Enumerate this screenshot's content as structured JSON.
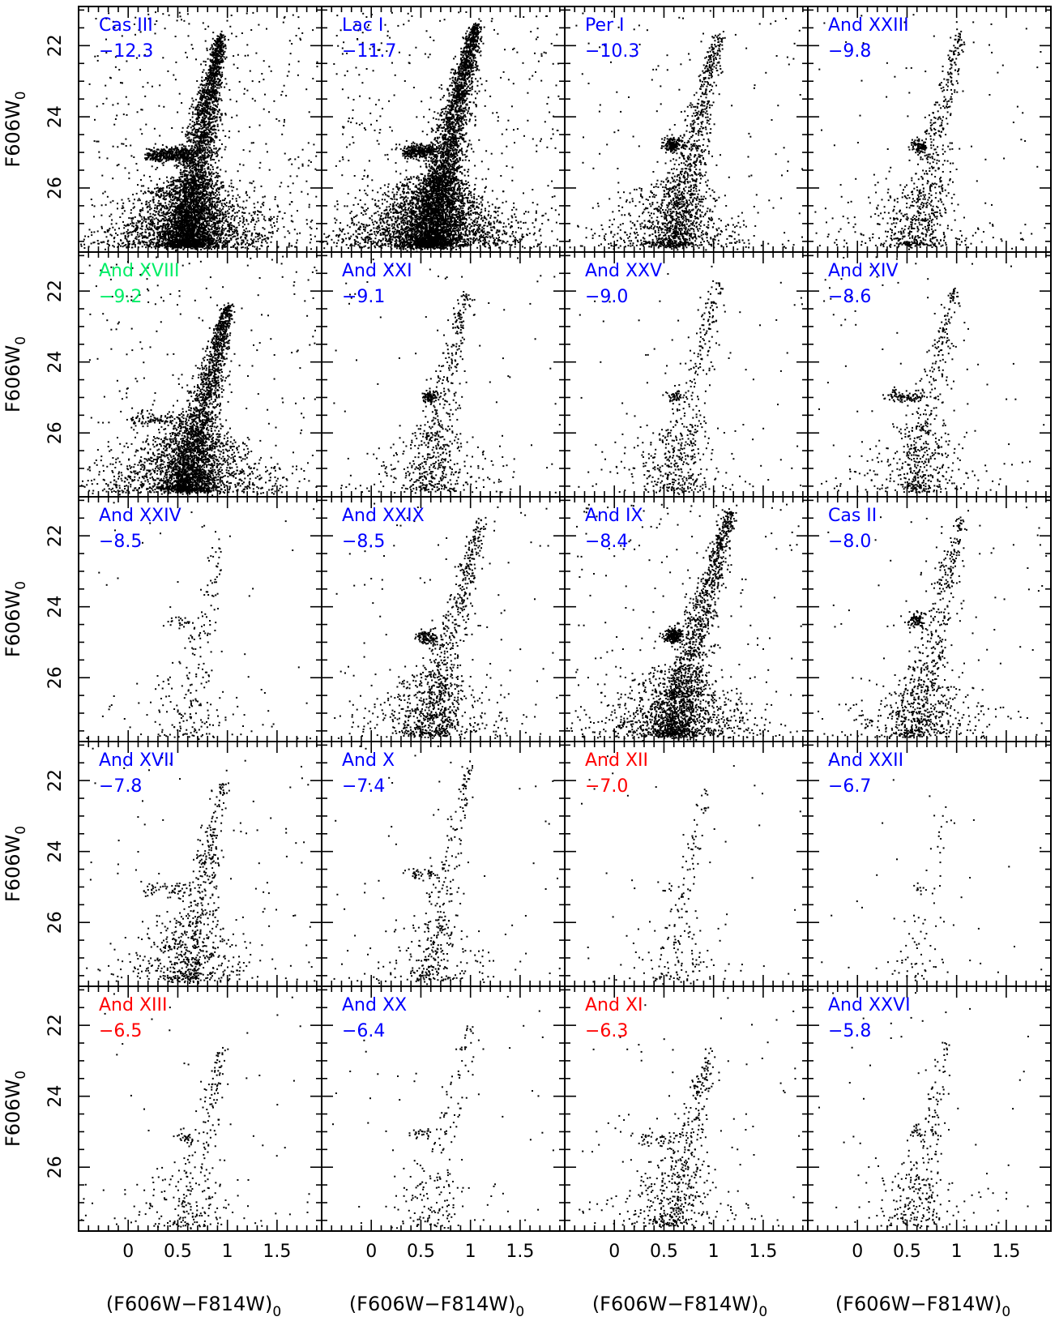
{
  "figure": {
    "ylabel": "F606W",
    "ylabel_sub": "0",
    "xlabel": "(F606W−F814W)",
    "xlabel_sub": "0"
  },
  "colors": {
    "blue": "#0000ff",
    "green": "#00ee66",
    "red": "#ff0000",
    "points": "#000000"
  },
  "chart_data": {
    "type": "scatter",
    "layout": "4 columns x 5 rows small multiples, shared axes",
    "xlim": [
      -0.5,
      1.95
    ],
    "ylim": [
      27.8,
      20.9
    ],
    "x_ticks": [
      0,
      0.5,
      1,
      1.5
    ],
    "x_tick_labels": [
      "0",
      "0.5",
      "1",
      "1.5"
    ],
    "y_ticks": [
      22,
      24,
      26
    ],
    "y_tick_labels": [
      "22",
      "24",
      "26"
    ],
    "panels": [
      {
        "name": "Cas III",
        "mag": "−12.3",
        "color": "blue",
        "n": 6000,
        "hb": [
          0.2,
          25.05,
          400
        ],
        "rgb": [
          0.88,
          21.7
        ]
      },
      {
        "name": "Lac I",
        "mag": "−11.7",
        "color": "blue",
        "n": 6500,
        "hb": [
          0.35,
          24.95,
          300
        ],
        "rgb": [
          1.0,
          21.4
        ]
      },
      {
        "name": "Per I",
        "mag": "−10.3",
        "color": "blue",
        "n": 1900,
        "hb": [
          0.55,
          24.75,
          160
        ],
        "rgb": [
          1.0,
          21.6
        ]
      },
      {
        "name": "And XXIII",
        "mag": "−9.8",
        "color": "blue",
        "n": 950,
        "hb": [
          0.6,
          24.8,
          90
        ],
        "rgb": [
          0.98,
          21.6
        ]
      },
      {
        "name": "And XVIII",
        "mag": "−9.2",
        "color": "green",
        "n": 3800,
        "hb": [
          0.05,
          25.6,
          120
        ],
        "rgb": [
          0.95,
          22.4
        ]
      },
      {
        "name": "And XXI",
        "mag": "−9.1",
        "color": "blue",
        "n": 800,
        "hb": [
          0.55,
          24.95,
          90
        ],
        "rgb": [
          0.9,
          22.0
        ]
      },
      {
        "name": "And XXV",
        "mag": "−9.0",
        "color": "blue",
        "n": 650,
        "hb": [
          0.6,
          24.95,
          50
        ],
        "rgb": [
          1.0,
          21.7
        ]
      },
      {
        "name": "And XIV",
        "mag": "−8.6",
        "color": "blue",
        "n": 750,
        "hb": [
          0.3,
          24.95,
          90
        ],
        "rgb": [
          0.92,
          21.9
        ]
      },
      {
        "name": "And XXIV",
        "mag": "−8.5",
        "color": "blue",
        "n": 300,
        "hb": [
          0.4,
          24.4,
          25
        ],
        "rgb": [
          0.9,
          21.9
        ]
      },
      {
        "name": "And XXIX",
        "mag": "−8.5",
        "color": "blue",
        "n": 1250,
        "hb": [
          0.5,
          24.85,
          110
        ],
        "rgb": [
          1.05,
          21.5
        ]
      },
      {
        "name": "And IX",
        "mag": "−8.4",
        "color": "blue",
        "n": 2700,
        "hb": [
          0.55,
          24.8,
          200
        ],
        "rgb": [
          1.1,
          21.3
        ]
      },
      {
        "name": "Cas II",
        "mag": "−8.0",
        "color": "blue",
        "n": 1000,
        "hb": [
          0.55,
          24.35,
          90
        ],
        "rgb": [
          1.0,
          21.5
        ]
      },
      {
        "name": "And XVII",
        "mag": "−7.8",
        "color": "blue",
        "n": 900,
        "hb": [
          0.1,
          25.05,
          60
        ],
        "rgb": [
          0.9,
          22.0
        ]
      },
      {
        "name": "And X",
        "mag": "−7.4",
        "color": "blue",
        "n": 480,
        "hb": [
          0.35,
          24.6,
          40
        ],
        "rgb": [
          0.95,
          21.4
        ]
      },
      {
        "name": "And XII",
        "mag": "−7.0",
        "color": "red",
        "n": 230,
        "hb": [
          0.5,
          25.1,
          10
        ],
        "rgb": [
          0.85,
          22.2
        ]
      },
      {
        "name": "And XXII",
        "mag": "−6.7",
        "color": "blue",
        "n": 110,
        "hb": [
          0.6,
          25.1,
          10
        ],
        "rgb": [
          0.85,
          22.7
        ]
      },
      {
        "name": "And XIII",
        "mag": "−6.5",
        "color": "red",
        "n": 360,
        "hb": [
          0.5,
          25.15,
          25
        ],
        "rgb": [
          0.9,
          22.6
        ]
      },
      {
        "name": "And XX",
        "mag": "−6.4",
        "color": "blue",
        "n": 260,
        "hb": [
          0.4,
          25.05,
          25
        ],
        "rgb": [
          0.95,
          21.9
        ]
      },
      {
        "name": "And XI",
        "mag": "−6.3",
        "color": "red",
        "n": 650,
        "hb": [
          0.2,
          25.2,
          45
        ],
        "rgb": [
          0.9,
          22.7
        ]
      },
      {
        "name": "And XXVI",
        "mag": "−5.8",
        "color": "blue",
        "n": 360,
        "hb": [
          0.55,
          25.0,
          20
        ],
        "rgb": [
          0.85,
          22.5
        ]
      }
    ]
  }
}
